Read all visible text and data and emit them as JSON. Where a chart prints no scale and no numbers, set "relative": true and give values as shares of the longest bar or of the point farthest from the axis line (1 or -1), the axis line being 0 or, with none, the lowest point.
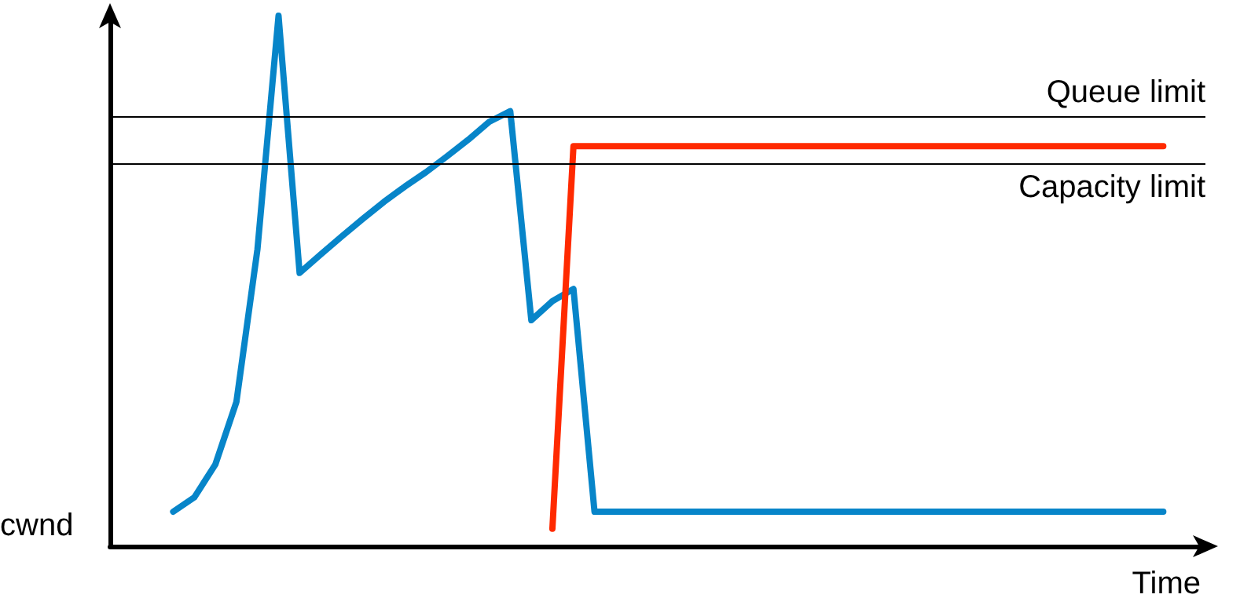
{
  "chart_data": {
    "type": "line",
    "relative": true,
    "xlabel": "Time",
    "ylabel": "cwnd",
    "grid": false,
    "marker": "none",
    "line_style": "solid",
    "categories": [
      null,
      null,
      null,
      null,
      null,
      null,
      null,
      null,
      null,
      null,
      null,
      null,
      null,
      null,
      null,
      null,
      null,
      null,
      null,
      null,
      null,
      null,
      null,
      null,
      null,
      null,
      null,
      null,
      null,
      null,
      null,
      null,
      null,
      null,
      null,
      null,
      null,
      null,
      null,
      null,
      null,
      null,
      null,
      null,
      null,
      null,
      null,
      null,
      null,
      null,
      null,
      null,
      null
    ],
    "series": [
      {
        "color": "#0785c9",
        "values": [
          null,
          null,
          null,
          0.065,
          0.092,
          0.154,
          0.272,
          0.56,
          1,
          0.515,
          0.55,
          0.584,
          0.617,
          0.649,
          0.678,
          0.705,
          0.735,
          0.766,
          0.8,
          0.82,
          0.426,
          0.462,
          0.485,
          0.065,
          0.065,
          0.065,
          0.065,
          0.065,
          0.065,
          0.065,
          0.065,
          0.065,
          0.065,
          0.065,
          0.065,
          0.065,
          0.065,
          0.065,
          0.065,
          0.065,
          0.065,
          0.065,
          0.065,
          0.065,
          0.065,
          0.065,
          0.065,
          0.065,
          0.065,
          0.065,
          0.065,
          null,
          null
        ]
      },
      {
        "color": "#ff2a00",
        "values": [
          null,
          null,
          null,
          null,
          null,
          null,
          null,
          null,
          null,
          null,
          null,
          null,
          null,
          null,
          null,
          null,
          null,
          null,
          null,
          null,
          null,
          0.033,
          0.754,
          0.754,
          0.754,
          0.754,
          0.754,
          0.754,
          0.754,
          0.754,
          0.754,
          0.754,
          0.754,
          0.754,
          0.754,
          0.754,
          0.754,
          0.754,
          0.754,
          0.754,
          0.754,
          0.754,
          0.754,
          0.754,
          0.754,
          0.754,
          0.754,
          0.754,
          0.754,
          0.754,
          0.754,
          null,
          null
        ]
      }
    ],
    "ref_lines": [
      {
        "axis": "y",
        "value": 0.808,
        "label": "Queue limit",
        "color": "#000000"
      },
      {
        "axis": "y",
        "value": 0.72,
        "label": "Capacity limit",
        "color": "#000000"
      }
    ]
  }
}
